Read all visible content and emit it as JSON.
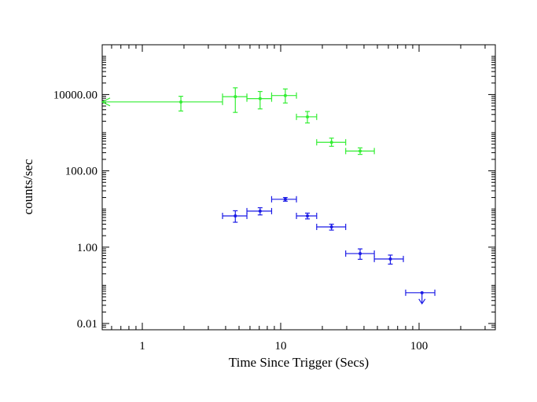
{
  "chart_data": {
    "type": "scatter",
    "title": "",
    "xlabel": "Time Since Trigger (Secs)",
    "ylabel": "counts/sec",
    "xscale": "log",
    "yscale": "log",
    "xlim": [
      0.5,
      400
    ],
    "ylim": [
      0.006,
      200000
    ],
    "grid": false,
    "legend": "none",
    "x_ticks": [
      {
        "value": 1,
        "label": "1"
      },
      {
        "value": 10,
        "label": "10"
      },
      {
        "value": 100,
        "label": "100"
      }
    ],
    "y_ticks": [
      {
        "value": 0.01,
        "label": "0.01"
      },
      {
        "value": 1,
        "label": "1.00"
      },
      {
        "value": 100,
        "label": "100.00"
      },
      {
        "value": 10000,
        "label": "10000.00"
      }
    ],
    "series": [
      {
        "color": "#33ee33",
        "points": [
          {
            "x": 1.9,
            "xlo": 0.5,
            "xhi": 3.8,
            "y": 6400,
            "ylo": 3700,
            "yhi": 9000,
            "xlo_arrow": true
          },
          {
            "x": 4.7,
            "xlo": 3.8,
            "xhi": 5.7,
            "y": 8800,
            "ylo": 3400,
            "yhi": 15000
          },
          {
            "x": 7.1,
            "xlo": 5.7,
            "xhi": 8.6,
            "y": 7800,
            "ylo": 4200,
            "yhi": 12000
          },
          {
            "x": 10.8,
            "xlo": 8.6,
            "xhi": 13.0,
            "y": 9400,
            "ylo": 6000,
            "yhi": 14000
          },
          {
            "x": 15.6,
            "xlo": 13.0,
            "xhi": 18.2,
            "y": 2600,
            "ylo": 1800,
            "yhi": 3600
          },
          {
            "x": 23.3,
            "xlo": 18.2,
            "xhi": 29.5,
            "y": 560,
            "ylo": 440,
            "yhi": 720
          },
          {
            "x": 37.5,
            "xlo": 29.5,
            "xhi": 47.5,
            "y": 330,
            "ylo": 270,
            "yhi": 400
          }
        ]
      },
      {
        "color": "#1a1ae6",
        "points": [
          {
            "x": 4.7,
            "xlo": 3.8,
            "xhi": 5.7,
            "y": 6.6,
            "ylo": 4.5,
            "yhi": 9.0
          },
          {
            "x": 7.1,
            "xlo": 5.7,
            "xhi": 8.6,
            "y": 8.8,
            "ylo": 7.0,
            "yhi": 10.8
          },
          {
            "x": 10.8,
            "xlo": 8.6,
            "xhi": 13.0,
            "y": 18,
            "ylo": 16,
            "yhi": 20
          },
          {
            "x": 15.6,
            "xlo": 13.0,
            "xhi": 18.2,
            "y": 6.6,
            "ylo": 5.5,
            "yhi": 7.8
          },
          {
            "x": 23.3,
            "xlo": 18.2,
            "xhi": 29.5,
            "y": 3.4,
            "ylo": 2.8,
            "yhi": 4.0
          },
          {
            "x": 37.5,
            "xlo": 29.5,
            "xhi": 47.5,
            "y": 0.68,
            "ylo": 0.48,
            "yhi": 0.9
          },
          {
            "x": 62,
            "xlo": 47.5,
            "xhi": 77,
            "y": 0.49,
            "ylo": 0.36,
            "yhi": 0.62
          },
          {
            "x": 105,
            "xlo": 80,
            "xhi": 130,
            "y": 0.064,
            "upper_limit": true
          }
        ]
      }
    ]
  }
}
